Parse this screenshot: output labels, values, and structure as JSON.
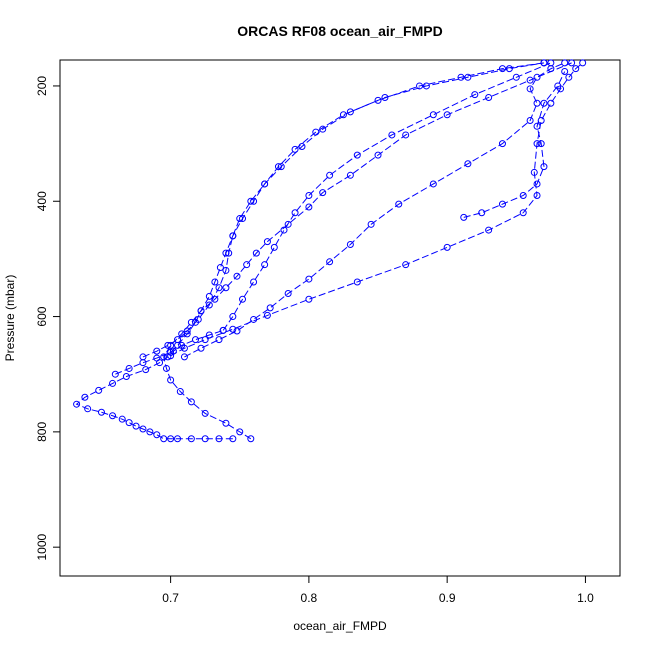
{
  "chart_data": {
    "type": "line",
    "title": "ORCAS RF08 ocean_air_FMPD",
    "xlabel": "ocean_air_FMPD",
    "ylabel": "Pressure (mbar)",
    "xlim": [
      0.62,
      1.025
    ],
    "ylim": [
      1050,
      155
    ],
    "y_inverted": true,
    "xticks": [
      0.7,
      0.8,
      0.9,
      1.0
    ],
    "xtick_labels": [
      "0.7",
      "0.8",
      "0.9",
      "1.0"
    ],
    "yticks": [
      200,
      400,
      600,
      800,
      1000
    ],
    "ytick_labels": [
      "200",
      "400",
      "600",
      "800",
      "1000"
    ],
    "grid": false,
    "legend": "none",
    "series_color": "#0000ff",
    "marker": "open-circle",
    "line_style": "dashed",
    "series": [
      {
        "x": [
          0.758,
          0.75,
          0.74,
          0.725,
          0.715,
          0.707,
          0.7,
          0.697,
          0.695,
          0.7,
          0.708,
          0.715,
          0.722,
          0.732,
          0.74,
          0.748,
          0.755,
          0.762,
          0.77,
          0.785,
          0.8,
          0.81,
          0.83,
          0.85,
          0.87,
          0.9,
          0.93,
          0.96,
          0.99
        ],
        "y": [
          812,
          800,
          785,
          768,
          748,
          730,
          710,
          690,
          670,
          650,
          630,
          610,
          590,
          570,
          550,
          530,
          510,
          490,
          470,
          440,
          410,
          385,
          355,
          320,
          285,
          250,
          220,
          190,
          160
        ]
      },
      {
        "x": [
          0.745,
          0.735,
          0.725,
          0.715,
          0.705,
          0.7,
          0.695,
          0.69,
          0.685,
          0.68,
          0.675,
          0.67,
          0.665,
          0.658,
          0.65,
          0.64,
          0.632,
          0.638,
          0.648,
          0.658,
          0.668,
          0.682,
          0.692,
          0.698,
          0.702,
          0.708,
          0.718,
          0.728,
          0.738
        ],
        "y": [
          812,
          812,
          812,
          812,
          812,
          812,
          812,
          805,
          800,
          795,
          790,
          784,
          778,
          772,
          766,
          760,
          752,
          740,
          728,
          716,
          704,
          692,
          680,
          670,
          660,
          650,
          640,
          632,
          624
        ]
      },
      {
        "x": [
          0.738,
          0.745,
          0.752,
          0.76,
          0.768,
          0.775,
          0.782,
          0.79,
          0.8,
          0.815,
          0.835,
          0.86,
          0.89,
          0.92,
          0.95,
          0.975
        ],
        "y": [
          624,
          600,
          570,
          540,
          510,
          480,
          450,
          420,
          390,
          355,
          320,
          285,
          250,
          215,
          185,
          160
        ]
      },
      {
        "x": [
          0.66,
          0.67,
          0.68,
          0.69,
          0.7,
          0.705,
          0.712,
          0.718,
          0.722,
          0.728,
          0.732,
          0.736,
          0.74,
          0.745,
          0.752,
          0.76,
          0.768,
          0.778,
          0.79,
          0.805,
          0.825,
          0.85,
          0.88,
          0.91,
          0.94,
          0.97
        ],
        "y": [
          700,
          690,
          680,
          672,
          662,
          650,
          630,
          610,
          590,
          565,
          540,
          515,
          490,
          460,
          430,
          400,
          370,
          340,
          310,
          280,
          250,
          225,
          200,
          185,
          170,
          160
        ]
      },
      {
        "x": [
          0.68,
          0.69,
          0.698,
          0.705,
          0.712,
          0.72,
          0.728,
          0.735,
          0.74,
          0.742,
          0.745,
          0.75,
          0.758,
          0.768,
          0.78,
          0.795,
          0.81,
          0.83,
          0.855,
          0.885,
          0.915,
          0.945,
          0.97
        ],
        "y": [
          670,
          660,
          650,
          640,
          625,
          605,
          580,
          550,
          520,
          490,
          460,
          430,
          400,
          370,
          340,
          305,
          275,
          245,
          220,
          200,
          185,
          170,
          160
        ]
      },
      {
        "x": [
          0.71,
          0.722,
          0.735,
          0.748,
          0.76,
          0.772,
          0.785,
          0.8,
          0.815,
          0.83,
          0.845,
          0.865,
          0.89,
          0.915,
          0.94,
          0.96,
          0.965,
          0.96,
          0.965,
          0.975,
          0.985
        ],
        "y": [
          670,
          655,
          640,
          625,
          605,
          585,
          560,
          535,
          505,
          475,
          440,
          405,
          370,
          335,
          300,
          260,
          230,
          205,
          185,
          170,
          160
        ]
      },
      {
        "x": [
          0.7,
          0.71,
          0.725,
          0.745,
          0.77,
          0.8,
          0.835,
          0.87,
          0.9,
          0.93,
          0.955,
          0.965,
          0.963,
          0.965,
          0.968,
          0.975,
          0.982,
          0.988,
          0.993,
          0.998
        ],
        "y": [
          668,
          655,
          640,
          622,
          598,
          570,
          540,
          510,
          480,
          450,
          420,
          390,
          350,
          300,
          260,
          230,
          205,
          185,
          170,
          160
        ]
      },
      {
        "x": [
          0.912,
          0.925,
          0.94,
          0.955,
          0.965,
          0.97,
          0.968,
          0.965,
          0.97,
          0.98,
          0.985
        ],
        "y": [
          428,
          420,
          405,
          390,
          370,
          340,
          300,
          270,
          230,
          200,
          175
        ]
      }
    ]
  }
}
